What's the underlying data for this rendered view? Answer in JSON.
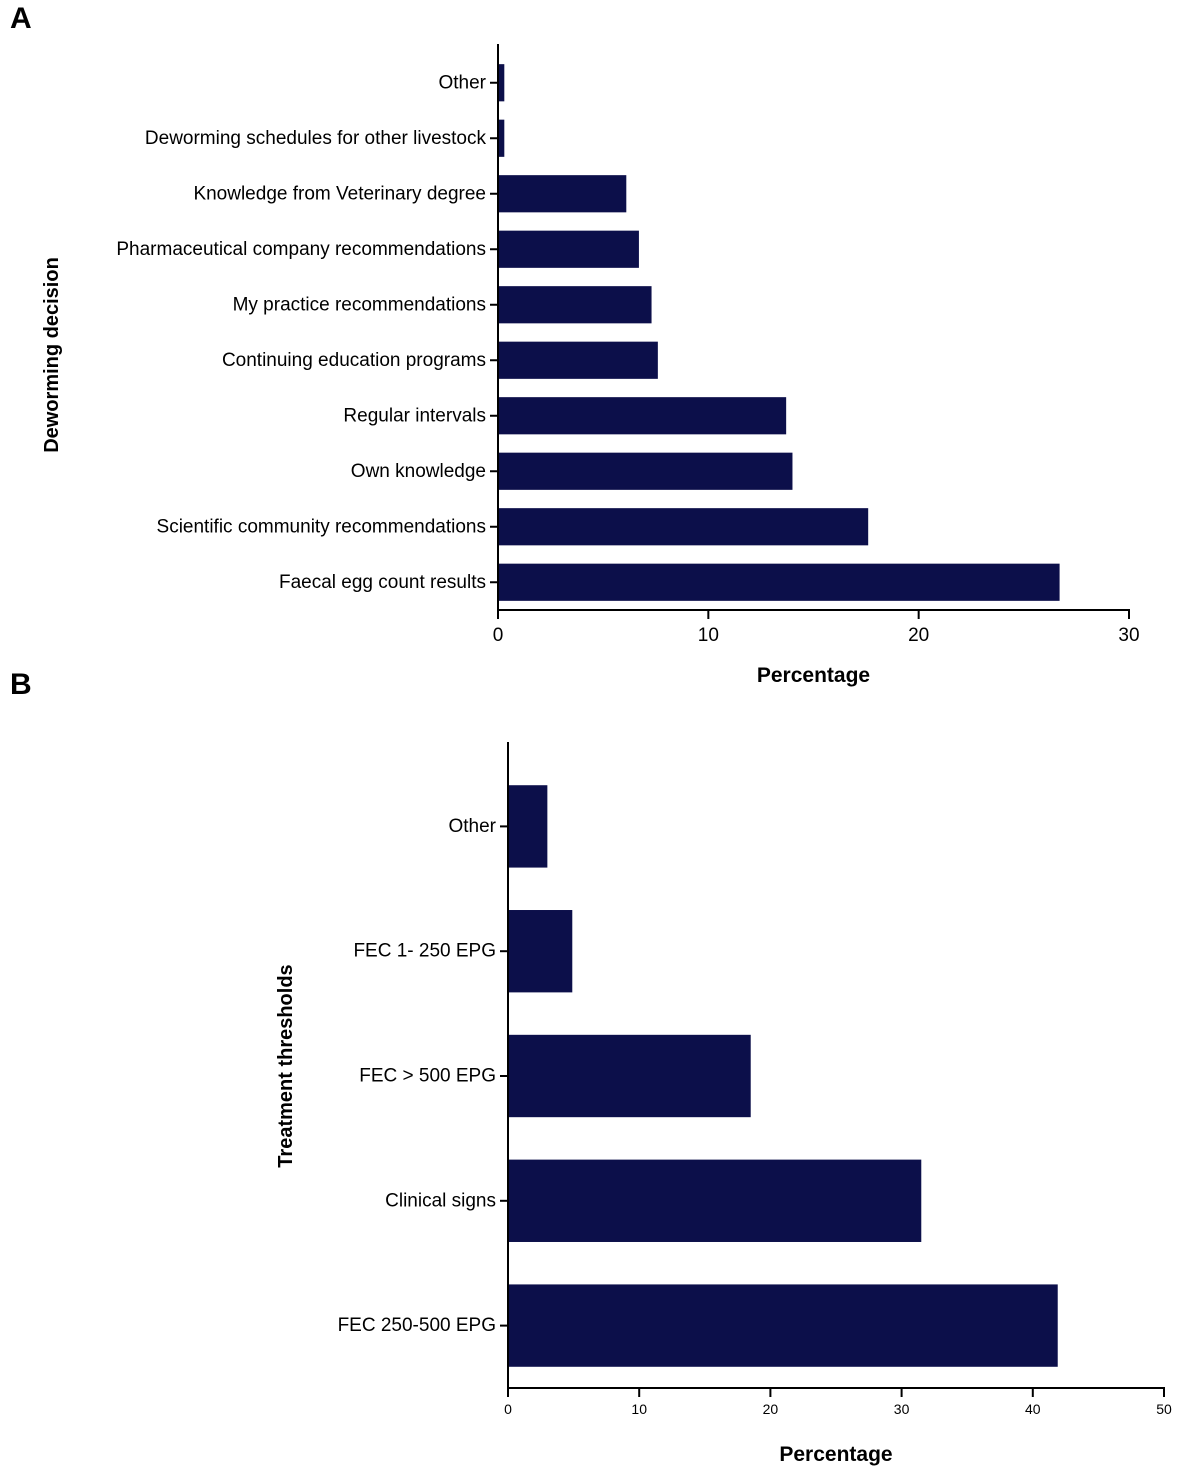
{
  "panels": {
    "a": "A",
    "b": "B"
  },
  "colors": {
    "bar": "#0c0f4a",
    "axis": "#000000"
  },
  "chart_data": [
    {
      "type": "bar",
      "orientation": "horizontal",
      "title": "",
      "ylabel": "Deworming decision",
      "xlabel": "Percentage",
      "xlim": [
        0,
        30
      ],
      "xticks": [
        0,
        10,
        20,
        30
      ],
      "categories": [
        "Other",
        "Deworming schedules for other livestock",
        "Knowledge from Veterinary degree",
        "Pharmaceutical company recommendations",
        "My practice recommendations",
        "Continuing education programs",
        "Regular intervals",
        "Own knowledge",
        "Scientific community recommendations",
        "Faecal egg count results"
      ],
      "values": [
        0.3,
        0.3,
        6.1,
        6.7,
        7.3,
        7.6,
        13.7,
        14.0,
        17.6,
        26.7
      ]
    },
    {
      "type": "bar",
      "orientation": "horizontal",
      "title": "",
      "ylabel": "Treatment thresholds",
      "xlabel": "Percentage",
      "xlim": [
        0,
        50
      ],
      "xticks": [
        0,
        10,
        20,
        30,
        40,
        50
      ],
      "categories": [
        "Other",
        "FEC 1- 250 EPG",
        "FEC > 500 EPG",
        "Clinical signs",
        "FEC 250-500 EPG"
      ],
      "values": [
        3.0,
        4.9,
        18.5,
        31.5,
        41.9
      ]
    }
  ]
}
